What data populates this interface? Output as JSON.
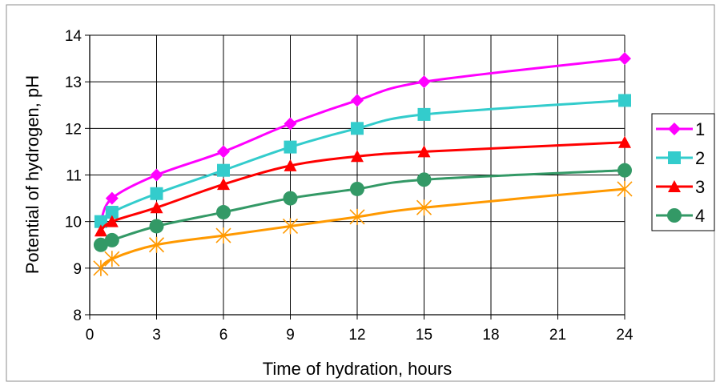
{
  "chart_data": {
    "type": "line",
    "xlabel": "Time of hydration, hours",
    "ylabel": "Potential of hydrogen, pH",
    "xlim": [
      0,
      24
    ],
    "ylim": [
      8,
      14
    ],
    "x_ticks": [
      "0",
      "3",
      "6",
      "9",
      "12",
      "15",
      "18",
      "21",
      "24"
    ],
    "y_ticks": [
      "8",
      "9",
      "10",
      "11",
      "12",
      "13",
      "14"
    ],
    "grid": true,
    "legend_position": "right",
    "series": [
      {
        "name": "1",
        "color": "#ff00ff",
        "marker": "diamond",
        "x": [
          0.5,
          1,
          3,
          6,
          9,
          12,
          15,
          24
        ],
        "y": [
          10.0,
          10.5,
          11.0,
          11.5,
          12.1,
          12.6,
          13.0,
          13.5
        ]
      },
      {
        "name": "2",
        "color": "#33cccc",
        "marker": "square",
        "x": [
          0.5,
          1,
          3,
          6,
          9,
          12,
          15,
          24
        ],
        "y": [
          10.0,
          10.2,
          10.6,
          11.1,
          11.6,
          12.0,
          12.3,
          12.6
        ]
      },
      {
        "name": "3",
        "color": "#ff0000",
        "marker": "triangle",
        "x": [
          0.5,
          1,
          3,
          6,
          9,
          12,
          15,
          24
        ],
        "y": [
          9.8,
          10.0,
          10.3,
          10.8,
          11.2,
          11.4,
          11.5,
          11.7
        ]
      },
      {
        "name": "4",
        "color": "#339966",
        "marker": "circle",
        "x": [
          0.5,
          1,
          3,
          6,
          9,
          12,
          15,
          24
        ],
        "y": [
          9.5,
          9.6,
          9.9,
          10.2,
          10.5,
          10.7,
          10.9,
          11.1
        ]
      },
      {
        "name": "",
        "color": "#ff9900",
        "marker": "star",
        "x": [
          0.5,
          1,
          3,
          6,
          9,
          12,
          15,
          24
        ],
        "y": [
          9.0,
          9.2,
          9.5,
          9.7,
          9.9,
          10.1,
          10.3,
          10.7
        ]
      }
    ]
  }
}
